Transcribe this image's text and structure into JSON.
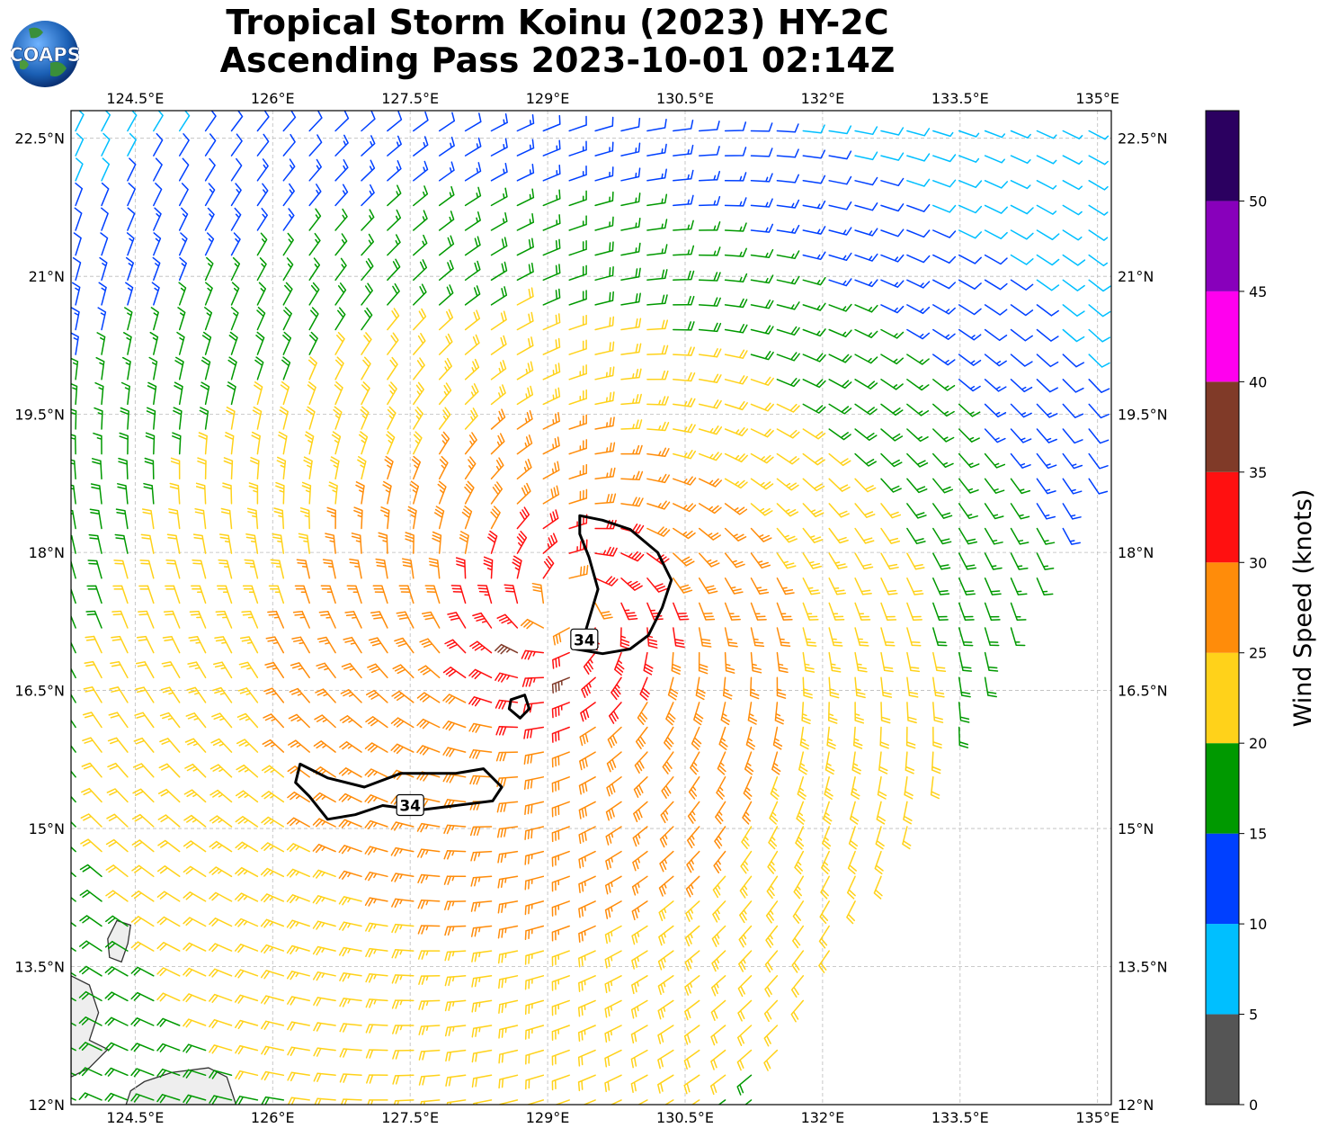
{
  "title": {
    "line1": "Tropical Storm Koinu (2023) HY-2C",
    "line2": "Ascending Pass 2023-10-01 02:14Z"
  },
  "logo": {
    "text": "COAPS",
    "icon": "globe-logo-icon"
  },
  "map": {
    "lon_range": [
      123.8,
      135.15
    ],
    "lat_range": [
      12.0,
      22.8
    ],
    "lon_ticks": [
      {
        "value": 124.5,
        "label": "124.5°E"
      },
      {
        "value": 126.0,
        "label": "126°E"
      },
      {
        "value": 127.5,
        "label": "127.5°E"
      },
      {
        "value": 129.0,
        "label": "129°E"
      },
      {
        "value": 130.5,
        "label": "130.5°E"
      },
      {
        "value": 132.0,
        "label": "132°E"
      },
      {
        "value": 133.5,
        "label": "133.5°E"
      },
      {
        "value": 135.0,
        "label": "135°E"
      }
    ],
    "lat_ticks": [
      {
        "value": 12.0,
        "label": "12°N"
      },
      {
        "value": 13.5,
        "label": "13.5°N"
      },
      {
        "value": 15.0,
        "label": "15°N"
      },
      {
        "value": 16.5,
        "label": "16.5°N"
      },
      {
        "value": 18.0,
        "label": "18°N"
      },
      {
        "value": 19.5,
        "label": "19.5°N"
      },
      {
        "value": 21.0,
        "label": "21°N"
      },
      {
        "value": 22.5,
        "label": "22.5°N"
      }
    ],
    "gridlines": "dashed",
    "storm_center": {
      "lon": 129.2,
      "lat": 17.4
    },
    "contour_labels": [
      {
        "text": "34",
        "lon": 129.4,
        "lat": 17.05
      },
      {
        "text": "34",
        "lon": 127.5,
        "lat": 15.25
      }
    ],
    "contour_34kt": [
      [
        [
          129.35,
          18.4
        ],
        [
          129.6,
          18.35
        ],
        [
          129.9,
          18.25
        ],
        [
          130.2,
          18.0
        ],
        [
          130.35,
          17.7
        ],
        [
          130.25,
          17.4
        ],
        [
          130.1,
          17.1
        ],
        [
          129.9,
          16.95
        ],
        [
          129.6,
          16.9
        ],
        [
          129.3,
          16.95
        ],
        [
          129.4,
          17.1
        ],
        [
          129.55,
          17.6
        ],
        [
          129.45,
          17.95
        ],
        [
          129.35,
          18.2
        ],
        [
          129.35,
          18.4
        ]
      ],
      [
        [
          128.6,
          16.4
        ],
        [
          128.75,
          16.45
        ],
        [
          128.8,
          16.3
        ],
        [
          128.7,
          16.2
        ],
        [
          128.58,
          16.3
        ],
        [
          128.6,
          16.4
        ]
      ],
      [
        [
          126.3,
          15.7
        ],
        [
          126.6,
          15.55
        ],
        [
          127.0,
          15.45
        ],
        [
          127.4,
          15.6
        ],
        [
          128.0,
          15.6
        ],
        [
          128.3,
          15.65
        ],
        [
          128.5,
          15.45
        ],
        [
          128.4,
          15.3
        ],
        [
          128.0,
          15.25
        ],
        [
          127.6,
          15.2
        ],
        [
          127.2,
          15.25
        ],
        [
          126.9,
          15.15
        ],
        [
          126.6,
          15.1
        ],
        [
          126.4,
          15.35
        ],
        [
          126.25,
          15.5
        ],
        [
          126.3,
          15.7
        ]
      ]
    ],
    "exclusion_edge": [
      [
        131.2,
        12.0
      ],
      [
        131.8,
        13.0
      ],
      [
        132.5,
        14.2
      ],
      [
        133.4,
        15.7
      ],
      [
        134.2,
        17.2
      ],
      [
        134.8,
        18.4
      ],
      [
        135.15,
        19.6
      ]
    ],
    "land": [
      {
        "name": "catanduanes-island",
        "points": [
          [
            124.2,
            13.8
          ],
          [
            124.3,
            14.0
          ],
          [
            124.45,
            13.95
          ],
          [
            124.42,
            13.75
          ],
          [
            124.35,
            13.55
          ],
          [
            124.22,
            13.6
          ],
          [
            124.2,
            13.8
          ]
        ]
      },
      {
        "name": "samar-island",
        "points": [
          [
            124.6,
            12.25
          ],
          [
            124.9,
            12.35
          ],
          [
            125.3,
            12.4
          ],
          [
            125.5,
            12.3
          ],
          [
            125.6,
            12.0
          ],
          [
            124.4,
            12.0
          ],
          [
            124.45,
            12.15
          ],
          [
            124.6,
            12.25
          ]
        ]
      },
      {
        "name": "luzon-coast",
        "points": [
          [
            123.8,
            13.4
          ],
          [
            124.0,
            13.3
          ],
          [
            124.1,
            13.0
          ],
          [
            124.0,
            12.7
          ],
          [
            124.2,
            12.6
          ],
          [
            124.0,
            12.4
          ],
          [
            123.8,
            12.3
          ]
        ]
      }
    ]
  },
  "colorbar": {
    "label": "Wind Speed (knots)",
    "ticks": [
      "0",
      "5",
      "10",
      "15",
      "20",
      "25",
      "30",
      "35",
      "40",
      "45",
      "50"
    ],
    "levels": [
      {
        "min": 0,
        "max": 5,
        "color": "#555555"
      },
      {
        "min": 5,
        "max": 10,
        "color": "#00bfff"
      },
      {
        "min": 10,
        "max": 15,
        "color": "#0040ff"
      },
      {
        "min": 15,
        "max": 20,
        "color": "#009900"
      },
      {
        "min": 20,
        "max": 25,
        "color": "#ffd21a"
      },
      {
        "min": 25,
        "max": 30,
        "color": "#ff8c0a"
      },
      {
        "min": 30,
        "max": 35,
        "color": "#ff1010"
      },
      {
        "min": 35,
        "max": 40,
        "color": "#803a28"
      },
      {
        "min": 40,
        "max": 45,
        "color": "#ff00ee"
      },
      {
        "min": 45,
        "max": 50,
        "color": "#8800bb"
      },
      {
        "min": 50,
        "max": 55,
        "color": "#2b0060"
      }
    ]
  }
}
